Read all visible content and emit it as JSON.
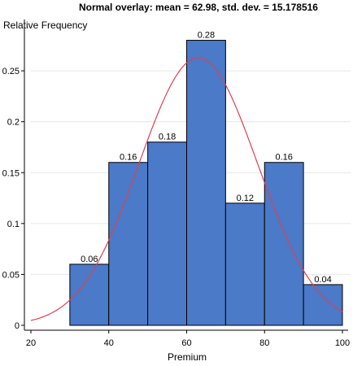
{
  "chart_data": {
    "type": "bar",
    "title": "Normal overlay: mean = 62.98, std. dev. = 15.178516",
    "xlabel": "Premium",
    "ylabel": "Relative Frequency",
    "bins": [
      {
        "x0": 30,
        "x1": 40,
        "value": 0.06,
        "label": "0.06"
      },
      {
        "x0": 40,
        "x1": 50,
        "value": 0.16,
        "label": "0.16"
      },
      {
        "x0": 50,
        "x1": 60,
        "value": 0.18,
        "label": "0.18"
      },
      {
        "x0": 60,
        "x1": 70,
        "value": 0.28,
        "label": "0.28"
      },
      {
        "x0": 70,
        "x1": 80,
        "value": 0.12,
        "label": "0.12"
      },
      {
        "x0": 80,
        "x1": 90,
        "value": 0.16,
        "label": "0.16"
      },
      {
        "x0": 90,
        "x1": 100,
        "value": 0.04,
        "label": "0.04"
      }
    ],
    "normal_overlay": {
      "mean": 62.98,
      "sd": 15.178516,
      "bin_width": 10
    },
    "xlim": [
      20,
      100
    ],
    "ylim": [
      0,
      0.28
    ],
    "xticks": [
      20,
      40,
      60,
      80,
      100
    ],
    "yticks": [
      0,
      0.05,
      0.1,
      0.15,
      0.2,
      0.25
    ],
    "xtick_labels": [
      "20",
      "40",
      "60",
      "80",
      "100"
    ],
    "ytick_labels": [
      "0",
      "0.05",
      "0.1",
      "0.15",
      "0.2",
      "0.25"
    ],
    "grid": true,
    "colors": {
      "bar": "#4a7ac8",
      "curve": "#e0404f",
      "grid": "#e6e6e6"
    }
  }
}
